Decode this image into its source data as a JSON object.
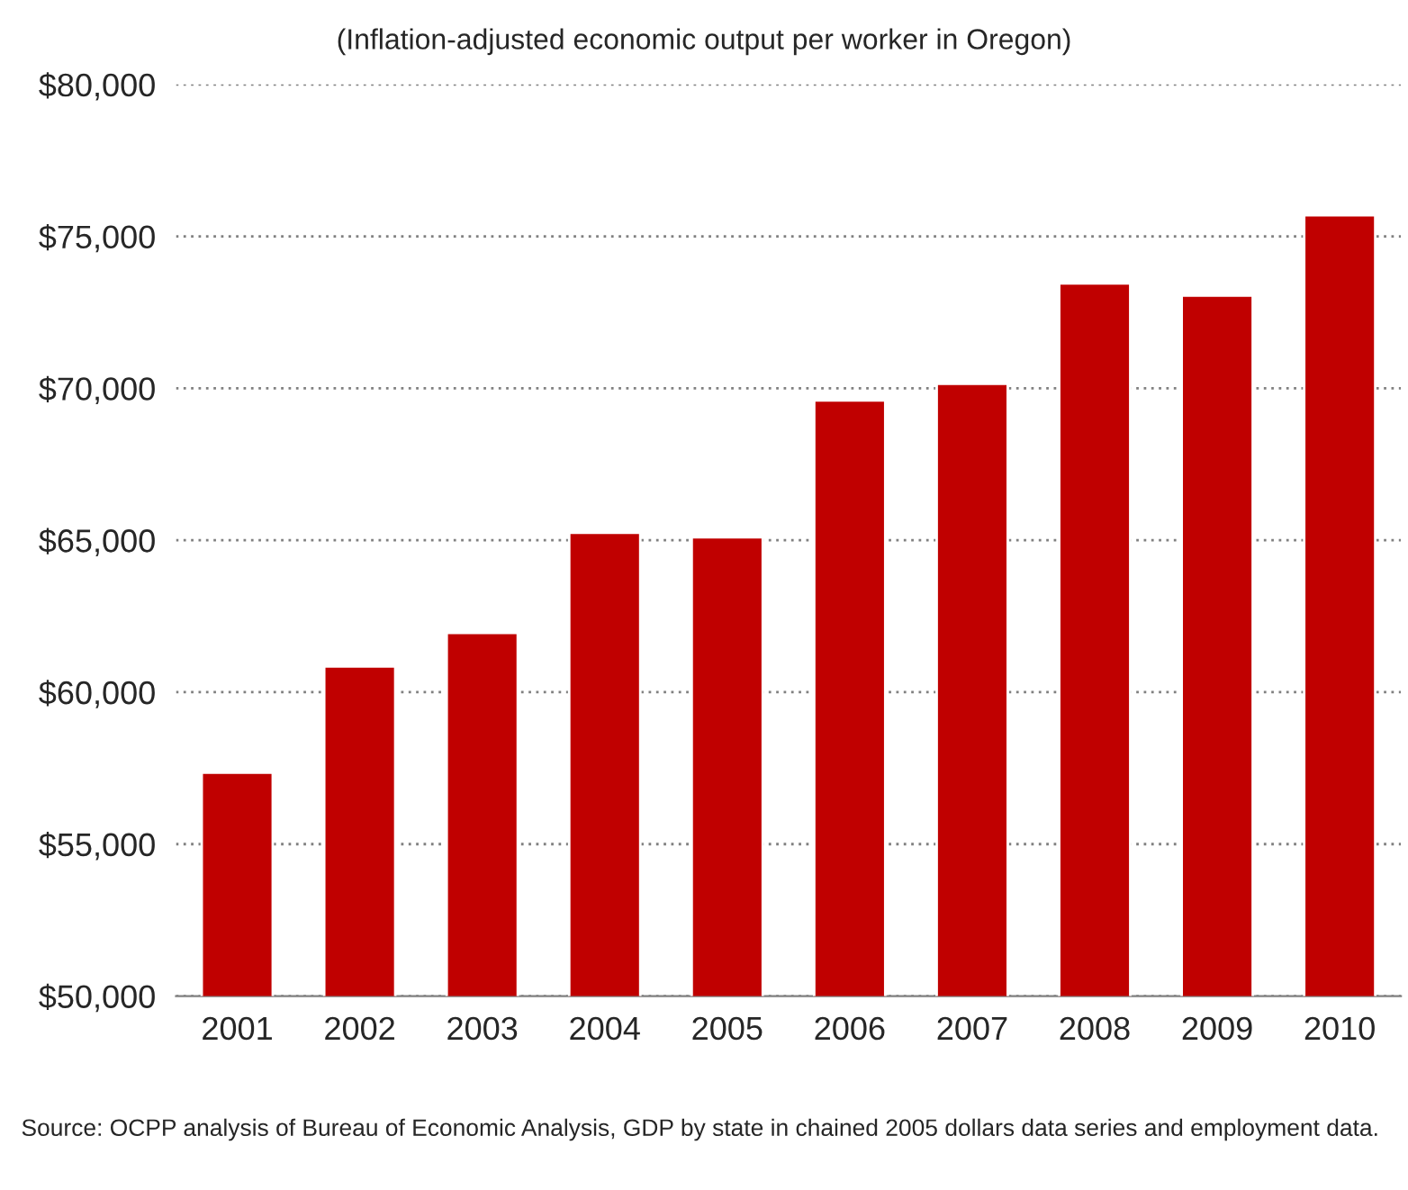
{
  "chart_data": {
    "type": "bar",
    "subtitle": "(Inflation-adjusted economic output per worker in Oregon)",
    "categories": [
      "2001",
      "2002",
      "2003",
      "2004",
      "2005",
      "2006",
      "2007",
      "2008",
      "2009",
      "2010"
    ],
    "values": [
      57350,
      60850,
      61950,
      65250,
      65100,
      69600,
      70150,
      73450,
      73050,
      75700
    ],
    "color": "#c00000",
    "ylim": [
      50000,
      80000
    ],
    "yticks": [
      {
        "value": 50000,
        "label": "$50,000"
      },
      {
        "value": 55000,
        "label": "$55,000"
      },
      {
        "value": 60000,
        "label": "$60,000"
      },
      {
        "value": 65000,
        "label": "$65,000"
      },
      {
        "value": 70000,
        "label": "$70,000"
      },
      {
        "value": 75000,
        "label": "$75,000"
      },
      {
        "value": 80000,
        "label": "$80,000"
      }
    ],
    "grid": "y",
    "annotations": [
      "Source: OCPP analysis of Bureau of Economic Analysis, GDP by state in chained 2005 dollars data series and employment data."
    ]
  }
}
